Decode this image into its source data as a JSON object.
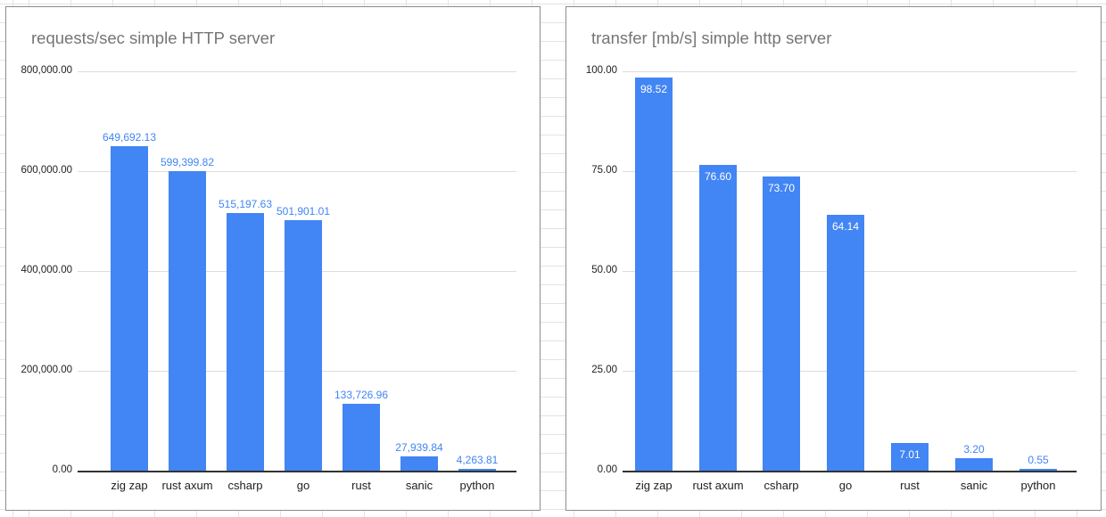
{
  "colors": {
    "bar": "#4285f4",
    "annotation_outside": "#4285f4",
    "annotation_inside": "#ffffff",
    "title": "#757575",
    "axis_text": "#202124",
    "gridline": "#dddddd",
    "baseline": "#333333",
    "chart_border": "#8c8c8c",
    "sheet_gridline": "#e3e3e3",
    "background": "#ffffff"
  },
  "chart_data": [
    {
      "type": "bar",
      "title": "requests/sec simple HTTP server",
      "xlabel": "",
      "ylabel": "",
      "legend": "none",
      "grid": true,
      "categories": [
        "zig zap",
        "rust axum",
        "csharp",
        "go",
        "rust",
        "sanic",
        "python"
      ],
      "values": [
        649692.13,
        599399.82,
        515197.63,
        501901.01,
        133726.96,
        27939.84,
        4263.81
      ],
      "value_labels": [
        "649,692.13",
        "599,399.82",
        "515,197.63",
        "501,901.01",
        "133,726.96",
        "27,939.84",
        "4,263.81"
      ],
      "annotation_placement": [
        "above",
        "above",
        "above",
        "above",
        "above",
        "above",
        "above"
      ],
      "ylim": [
        0,
        800000
      ],
      "yticks": [
        0,
        200000,
        400000,
        600000,
        800000
      ],
      "ytick_labels": [
        "0.00",
        "200,000.00",
        "400,000.00",
        "600,000.00",
        "800,000.00"
      ]
    },
    {
      "type": "bar",
      "title": "transfer [mb/s] simple http server",
      "xlabel": "",
      "ylabel": "",
      "legend": "none",
      "grid": true,
      "categories": [
        "zig zap",
        "rust axum",
        "csharp",
        "go",
        "rust",
        "sanic",
        "python"
      ],
      "values": [
        98.52,
        76.6,
        73.7,
        64.14,
        7.01,
        3.2,
        0.55
      ],
      "value_labels": [
        "98.52",
        "76.60",
        "73.70",
        "64.14",
        "7.01",
        "3.20",
        "0.55"
      ],
      "annotation_placement": [
        "inside",
        "inside",
        "inside",
        "inside",
        "inside",
        "above",
        "above"
      ],
      "ylim": [
        0,
        100
      ],
      "yticks": [
        0,
        25,
        50,
        75,
        100
      ],
      "ytick_labels": [
        "0.00",
        "25.00",
        "50.00",
        "75.00",
        "100.00"
      ]
    }
  ]
}
